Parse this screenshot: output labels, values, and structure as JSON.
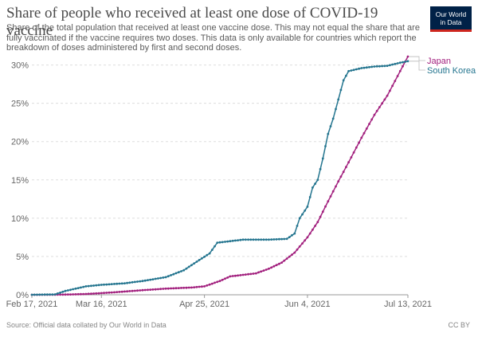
{
  "header": {
    "title": "Share of people who received at least one dose of COVID-19 vaccine",
    "subtitle": "Share of the total population that received at least one vaccine dose. This may not equal the share that are fully vaccinated if the vaccine requires two doses. This data is only available for countries which report the breakdown of doses administered by first and second doses."
  },
  "logo": {
    "line1": "Our World",
    "line2": "in Data"
  },
  "footer": {
    "source": "Source: Official data collated by Our World in Data",
    "license": "CC BY"
  },
  "chart_data": {
    "type": "line",
    "x_start": "2021-02-17",
    "x_end": "2021-07-13",
    "ylim": [
      0,
      31
    ],
    "yticks": [
      0,
      5,
      10,
      15,
      20,
      25,
      30
    ],
    "ytick_labels": [
      "0%",
      "5%",
      "10%",
      "15%",
      "20%",
      "25%",
      "30%"
    ],
    "xticks": [
      "2021-02-17",
      "2021-03-16",
      "2021-04-25",
      "2021-06-04",
      "2021-07-13"
    ],
    "xtick_labels": [
      "Feb 17, 2021",
      "Mar 16, 2021",
      "Apr 25, 2021",
      "Jun 4, 2021",
      "Jul 13, 2021"
    ],
    "grid": "horizontal dashed",
    "legend": "right",
    "series": [
      {
        "name": "Japan",
        "color": "#a2207e",
        "points": [
          [
            "2021-02-17",
            0
          ],
          [
            "2021-03-01",
            0.02
          ],
          [
            "2021-03-10",
            0.1
          ],
          [
            "2021-03-20",
            0.3
          ],
          [
            "2021-04-01",
            0.6
          ],
          [
            "2021-04-10",
            0.8
          ],
          [
            "2021-04-20",
            0.95
          ],
          [
            "2021-04-25",
            1.1
          ],
          [
            "2021-05-01",
            1.8
          ],
          [
            "2021-05-05",
            2.4
          ],
          [
            "2021-05-10",
            2.6
          ],
          [
            "2021-05-15",
            2.8
          ],
          [
            "2021-05-20",
            3.4
          ],
          [
            "2021-05-25",
            4.2
          ],
          [
            "2021-05-30",
            5.5
          ],
          [
            "2021-06-04",
            7.5
          ],
          [
            "2021-06-08",
            9.5
          ],
          [
            "2021-06-12",
            12.2
          ],
          [
            "2021-06-16",
            14.8
          ],
          [
            "2021-06-20",
            17.3
          ],
          [
            "2021-06-25",
            20.5
          ],
          [
            "2021-06-30",
            23.5
          ],
          [
            "2021-07-05",
            26.0
          ],
          [
            "2021-07-10",
            29.2
          ],
          [
            "2021-07-13",
            31.1
          ]
        ]
      },
      {
        "name": "South Korea",
        "color": "#24758f",
        "points": [
          [
            "2021-02-17",
            0
          ],
          [
            "2021-02-26",
            0.05
          ],
          [
            "2021-03-02",
            0.5
          ],
          [
            "2021-03-10",
            1.1
          ],
          [
            "2021-03-16",
            1.3
          ],
          [
            "2021-03-25",
            1.5
          ],
          [
            "2021-04-01",
            1.8
          ],
          [
            "2021-04-10",
            2.3
          ],
          [
            "2021-04-17",
            3.2
          ],
          [
            "2021-04-21",
            4.1
          ],
          [
            "2021-04-27",
            5.4
          ],
          [
            "2021-04-30",
            6.8
          ],
          [
            "2021-05-05",
            7.0
          ],
          [
            "2021-05-10",
            7.2
          ],
          [
            "2021-05-20",
            7.2
          ],
          [
            "2021-05-27",
            7.3
          ],
          [
            "2021-05-30",
            8.0
          ],
          [
            "2021-06-01",
            10.0
          ],
          [
            "2021-06-04",
            11.5
          ],
          [
            "2021-06-06",
            14.0
          ],
          [
            "2021-06-08",
            15.0
          ],
          [
            "2021-06-10",
            17.8
          ],
          [
            "2021-06-12",
            21.0
          ],
          [
            "2021-06-14",
            23.0
          ],
          [
            "2021-06-16",
            25.5
          ],
          [
            "2021-06-18",
            28.0
          ],
          [
            "2021-06-20",
            29.2
          ],
          [
            "2021-06-25",
            29.6
          ],
          [
            "2021-06-30",
            29.8
          ],
          [
            "2021-07-05",
            29.9
          ],
          [
            "2021-07-10",
            30.3
          ],
          [
            "2021-07-13",
            30.5
          ]
        ]
      }
    ]
  }
}
